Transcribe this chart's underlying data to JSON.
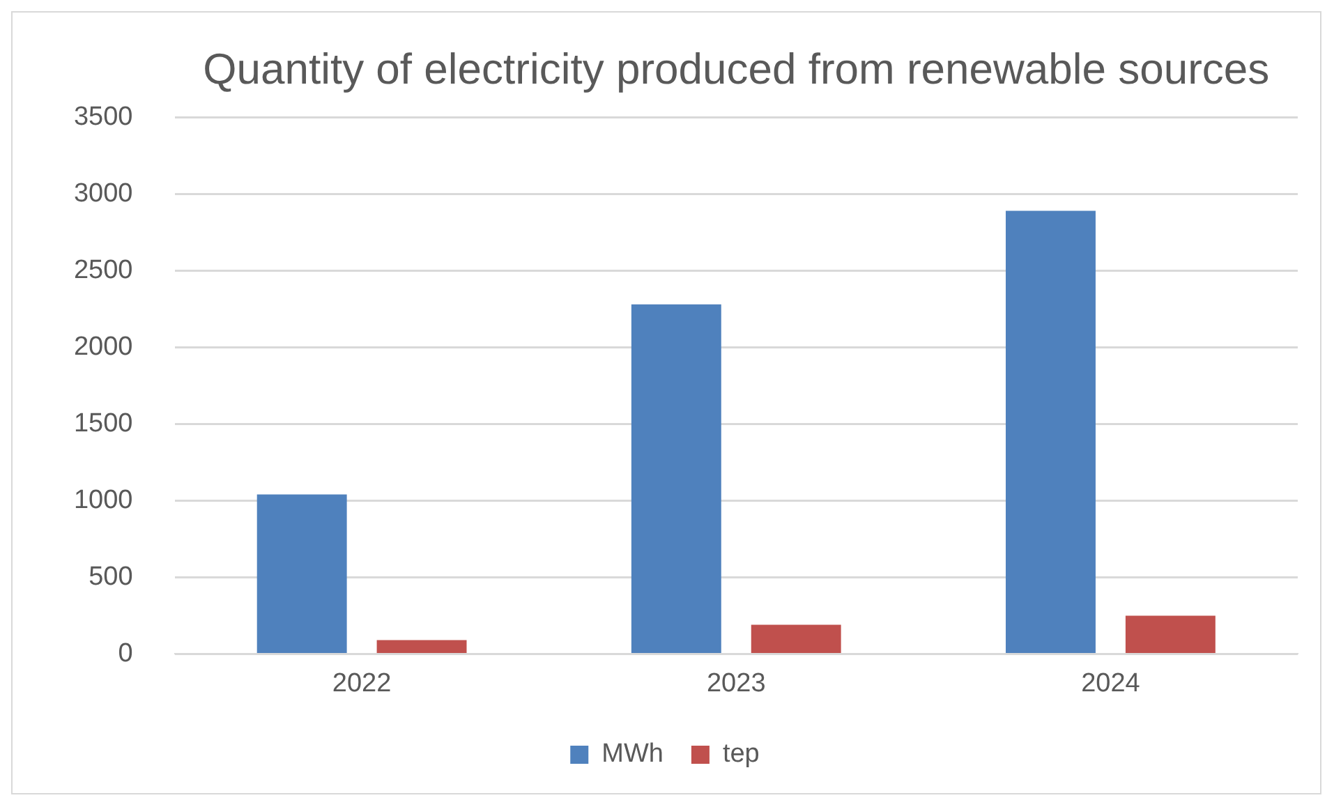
{
  "chart_data": {
    "type": "bar",
    "title": "Quantity of electricity produced from renewable sources",
    "categories": [
      "2022",
      "2023",
      "2024"
    ],
    "series": [
      {
        "name": "MWh",
        "color": "#4f81bd",
        "values": [
          1040,
          2280,
          2890
        ]
      },
      {
        "name": "tep",
        "color": "#c0504d",
        "values": [
          90,
          190,
          250
        ]
      }
    ],
    "ylim": [
      0,
      3500
    ],
    "yticks": [
      0,
      500,
      1000,
      1500,
      2000,
      2500,
      3000,
      3500
    ],
    "grid": "y",
    "legend": "bottom"
  }
}
